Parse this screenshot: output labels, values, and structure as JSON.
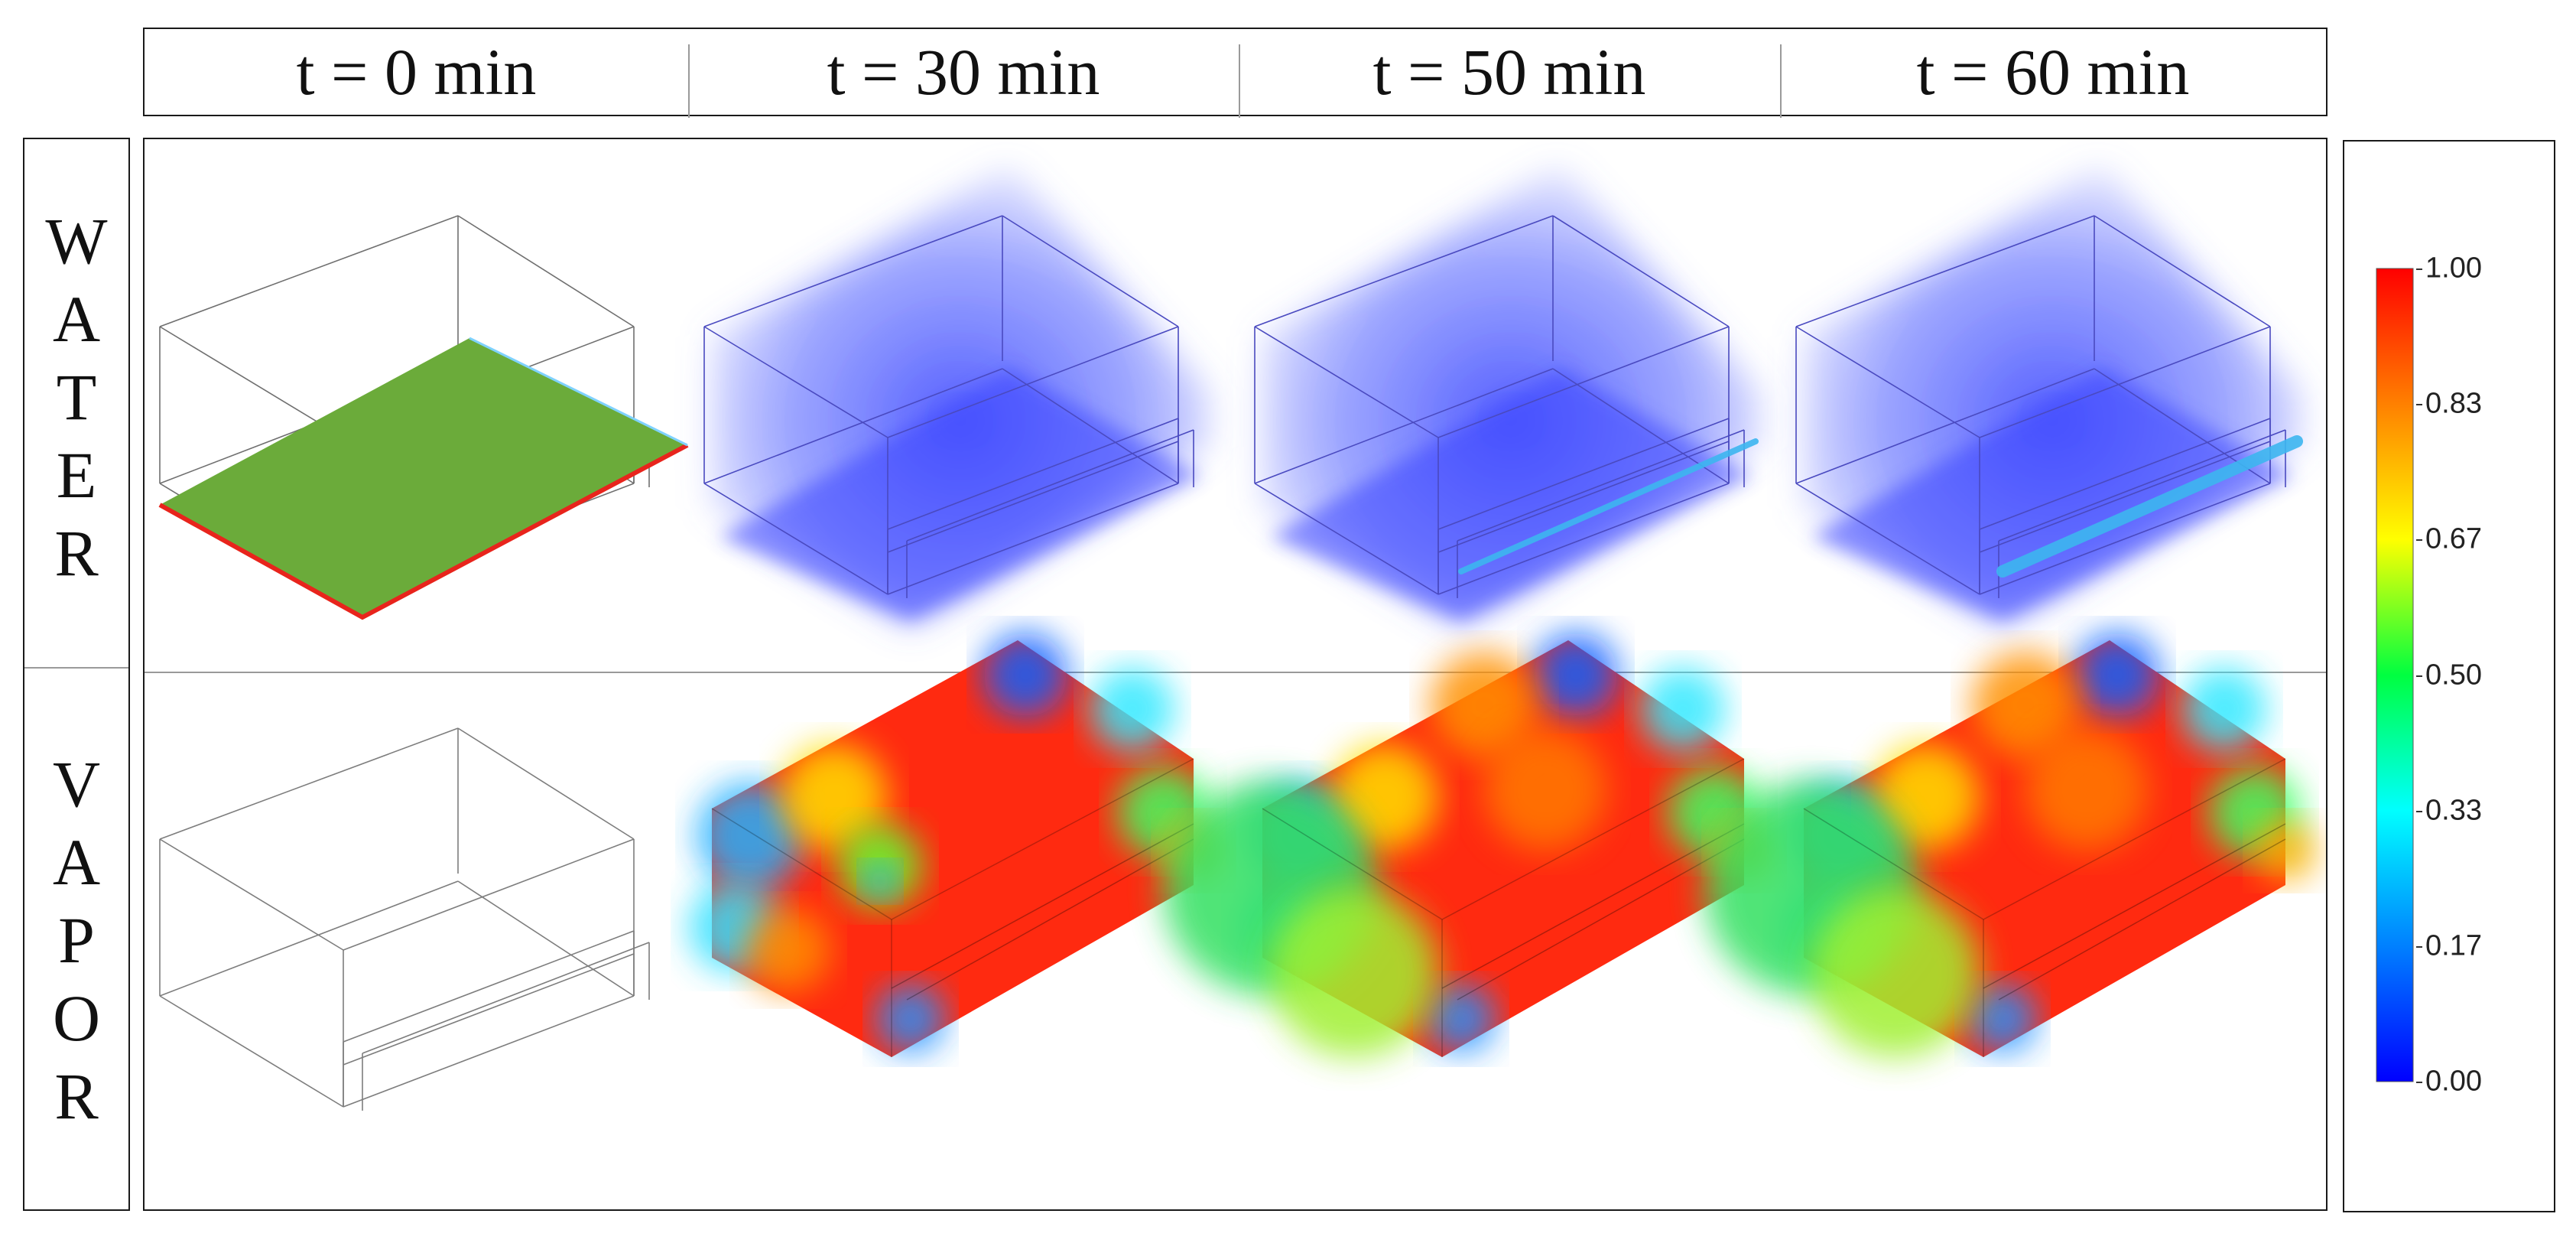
{
  "header": {
    "columns": [
      "t = 0 min",
      "t = 30 min",
      "t = 50 min",
      "t = 60 min"
    ]
  },
  "rows": [
    {
      "label": "WATER",
      "letters": [
        "W",
        "A",
        "T",
        "E",
        "R"
      ]
    },
    {
      "label": "VAPOR",
      "letters": [
        "V",
        "A",
        "P",
        "O",
        "R"
      ]
    }
  ],
  "colorbar": {
    "ticks": [
      "1.00",
      "0.83",
      "0.67",
      "0.50",
      "0.33",
      "0.17",
      "0.00"
    ],
    "min": 0.0,
    "max": 1.0,
    "colors": [
      "#ff0000",
      "#ff8000",
      "#ffff00",
      "#00ff40",
      "#00ffff",
      "#0080ff",
      "#0000ff"
    ]
  },
  "panels": {
    "water_t0_fill": "#6bab3a",
    "water_t0_edge": "#e8241c",
    "water_volume": "#4a55ff",
    "water_pool": "#3db6f0",
    "vapor_base": "#ff2a10"
  }
}
